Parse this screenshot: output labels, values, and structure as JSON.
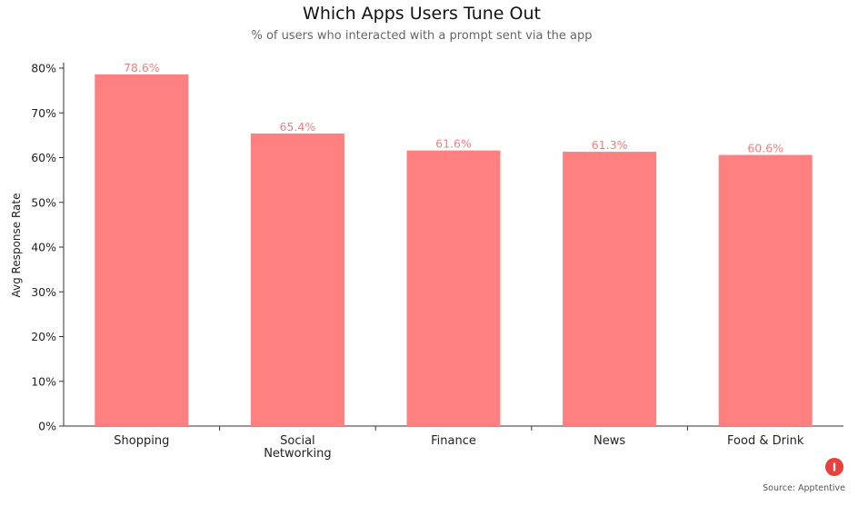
{
  "chart_data": {
    "type": "bar",
    "title": "Which Apps Users Tune Out",
    "subtitle": "% of users who interacted with a prompt sent via the app",
    "xlabel": "",
    "ylabel": "Avg Response Rate",
    "categories": [
      [
        "Shopping"
      ],
      [
        "Social",
        "Networking"
      ],
      [
        "Finance"
      ],
      [
        "News"
      ],
      [
        "Food & Drink"
      ]
    ],
    "values": [
      78.6,
      65.4,
      61.6,
      61.3,
      60.6
    ],
    "data_labels": [
      "78.6%",
      "65.4%",
      "61.6%",
      "61.3%",
      "60.6%"
    ],
    "yticks": [
      0,
      10,
      20,
      30,
      40,
      50,
      60,
      70,
      80
    ],
    "ytick_labels": [
      "0%",
      "10%",
      "20%",
      "30%",
      "40%",
      "50%",
      "60%",
      "70%",
      "80%"
    ],
    "ylim": [
      0,
      80
    ],
    "grid": false,
    "bar_color": "#ff8080",
    "label_color": "#f08080"
  },
  "footer": {
    "source": "Source: Apptentive",
    "logo_letter": "I",
    "logo_color": "#e8413c"
  }
}
